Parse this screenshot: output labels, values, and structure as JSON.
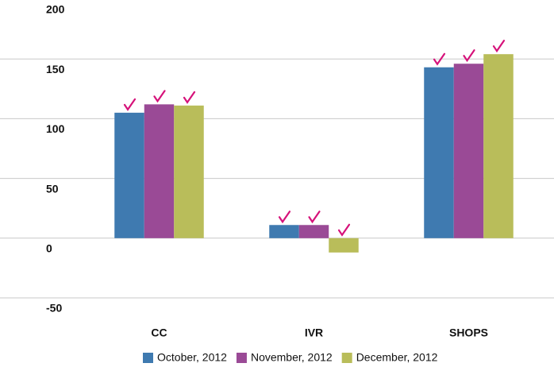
{
  "chart_data": {
    "type": "bar",
    "categories": [
      "CC",
      "IVR",
      "SHOPS"
    ],
    "series": [
      {
        "name": "October, 2012",
        "color": "#3f7ab0",
        "values": [
          105,
          11,
          143
        ]
      },
      {
        "name": "November, 2012",
        "color": "#9a4a96",
        "values": [
          112,
          11,
          146
        ]
      },
      {
        "name": "December, 2012",
        "color": "#b9bd5a",
        "values": [
          111,
          -12,
          154
        ]
      }
    ],
    "ylim": [
      -50,
      200
    ],
    "yticks": [
      -50,
      0,
      50,
      100,
      150,
      200
    ],
    "grid": true
  }
}
